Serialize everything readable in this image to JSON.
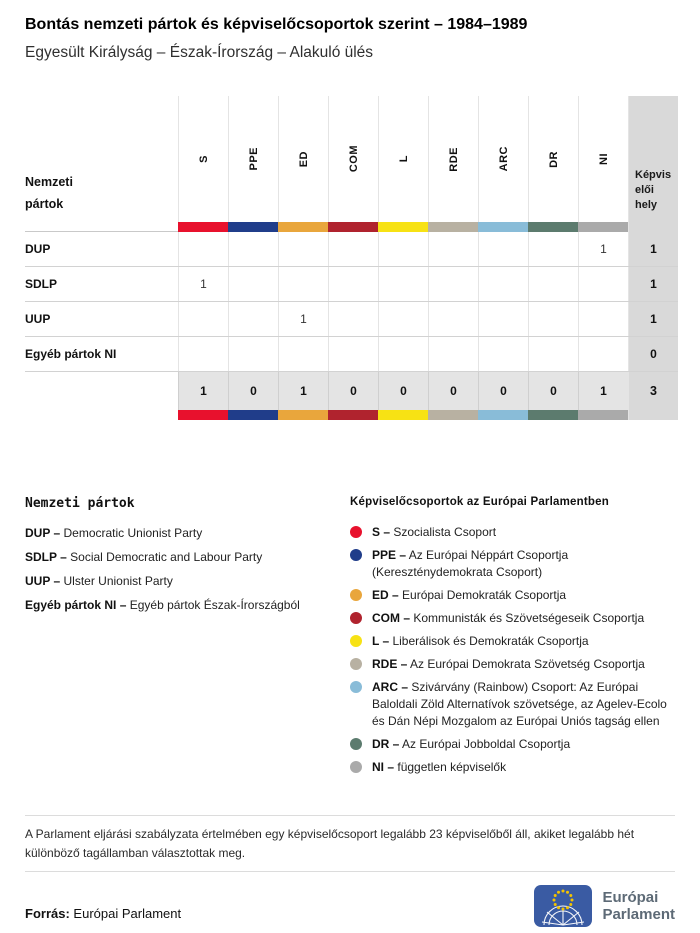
{
  "header": {
    "title": "Bontás nemzeti pártok és képviselőcsoportok szerint – 1984–1989",
    "subtitle": "Egyesült Királyság – Észak-Írország – Alakuló ülés"
  },
  "table": {
    "row_header": "Nemzeti pártok",
    "seats_header": "Képviselői hely",
    "groups": [
      {
        "code": "S",
        "color": "#e8112d"
      },
      {
        "code": "PPE",
        "color": "#203d8a"
      },
      {
        "code": "ED",
        "color": "#e9a63c"
      },
      {
        "code": "COM",
        "color": "#b0232e"
      },
      {
        "code": "L",
        "color": "#f7e214"
      },
      {
        "code": "RDE",
        "color": "#b8b1a2"
      },
      {
        "code": "ARC",
        "color": "#89bcd8"
      },
      {
        "code": "DR",
        "color": "#5c7b6e"
      },
      {
        "code": "NI",
        "color": "#aaaaaa"
      }
    ],
    "rows": [
      {
        "label": "DUP",
        "values": [
          "",
          "",
          "",
          "",
          "",
          "",
          "",
          "",
          "1"
        ],
        "seats": "1"
      },
      {
        "label": "SDLP",
        "values": [
          "1",
          "",
          "",
          "",
          "",
          "",
          "",
          "",
          ""
        ],
        "seats": "1"
      },
      {
        "label": "UUP",
        "values": [
          "",
          "",
          "1",
          "",
          "",
          "",
          "",
          "",
          ""
        ],
        "seats": "1"
      },
      {
        "label": "Egyéb pártok NI",
        "values": [
          "",
          "",
          "",
          "",
          "",
          "",
          "",
          "",
          ""
        ],
        "seats": "0"
      }
    ],
    "totals": {
      "values": [
        "1",
        "0",
        "1",
        "0",
        "0",
        "0",
        "0",
        "0",
        "1"
      ],
      "seats": "3"
    }
  },
  "chart_data": {
    "type": "table",
    "title": "Bontás nemzeti pártok és képviselőcsoportok szerint – 1984–1989",
    "subtitle": "Egyesült Királyság – Észak-Írország – Alakuló ülés",
    "columns": [
      "S",
      "PPE",
      "ED",
      "COM",
      "L",
      "RDE",
      "ARC",
      "DR",
      "NI",
      "Képviselői hely"
    ],
    "rows": [
      {
        "party": "DUP",
        "values": [
          0,
          0,
          0,
          0,
          0,
          0,
          0,
          0,
          1
        ],
        "seats": 1
      },
      {
        "party": "SDLP",
        "values": [
          1,
          0,
          0,
          0,
          0,
          0,
          0,
          0,
          0
        ],
        "seats": 1
      },
      {
        "party": "UUP",
        "values": [
          0,
          0,
          1,
          0,
          0,
          0,
          0,
          0,
          0
        ],
        "seats": 1
      },
      {
        "party": "Egyéb pártok NI",
        "values": [
          0,
          0,
          0,
          0,
          0,
          0,
          0,
          0,
          0
        ],
        "seats": 0
      }
    ],
    "totals": {
      "values": [
        1,
        0,
        1,
        0,
        0,
        0,
        0,
        0,
        1
      ],
      "seats": 3
    }
  },
  "legend_parties": {
    "title": "Nemzeti pártok",
    "items": [
      {
        "abbr": "DUP –",
        "name": "Democratic Unionist Party"
      },
      {
        "abbr": "SDLP –",
        "name": "Social Democratic and Labour Party"
      },
      {
        "abbr": "UUP –",
        "name": "Ulster Unionist Party"
      },
      {
        "abbr": "Egyéb pártok NI –",
        "name": "Egyéb pártok Észak-Írországból"
      }
    ]
  },
  "legend_groups": {
    "title": "Képviselőcsoportok az Európai Parlamentben",
    "items": [
      {
        "abbr": "S –",
        "color": "#e8112d",
        "name": "Szocialista Csoport"
      },
      {
        "abbr": "PPE –",
        "color": "#203d8a",
        "name": "Az Európai Néppárt Csoportja (Kereszténydemokrata Csoport)"
      },
      {
        "abbr": "ED –",
        "color": "#e9a63c",
        "name": "Európai Demokraták Csoportja"
      },
      {
        "abbr": "COM –",
        "color": "#b0232e",
        "name": "Kommunisták és Szövetségeseik Csoportja"
      },
      {
        "abbr": "L –",
        "color": "#f7e214",
        "name": "Liberálisok és Demokraták Csoportja"
      },
      {
        "abbr": "RDE –",
        "color": "#b8b1a2",
        "name": "Az Európai Demokrata Szövetség Csoportja"
      },
      {
        "abbr": "ARC –",
        "color": "#89bcd8",
        "name": "Szivárvány (Rainbow) Csoport: Az Európai Baloldali Zöld Alternatívok szövetsége, az Agelev-Ecolo és Dán Népi Mozgalom az Európai Uniós tagság ellen"
      },
      {
        "abbr": "DR –",
        "color": "#5c7b6e",
        "name": "Az Európai Jobboldal Csoportja"
      },
      {
        "abbr": "NI –",
        "color": "#aaaaaa",
        "name": "független képviselők"
      }
    ]
  },
  "footnote": "A Parlament eljárási szabályzata értelmében egy képviselőcsoport legalább 23 képviselőből áll, akiket legalább hét különböző tagállamban választottak meg.",
  "source": {
    "label": "Forrás:",
    "value": "Európai Parlament"
  },
  "logo": {
    "line1": "Európai",
    "line2": "Parlament"
  }
}
